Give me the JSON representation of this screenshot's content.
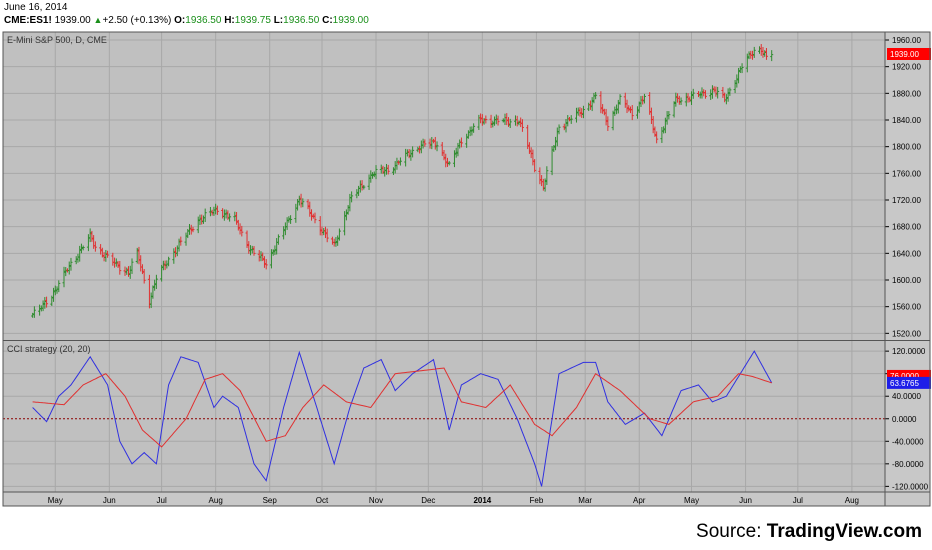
{
  "header": {
    "date": "June 16, 2014",
    "symbol": "CME:ES1!",
    "last": "1939.00",
    "change": "+2.50 (+0.13%)",
    "open_label": "O:",
    "open": "1936.50",
    "high_label": "H:",
    "high": "1939.75",
    "low_label": "L:",
    "low": "1936.50",
    "close_label": "C:",
    "close": "1939.00"
  },
  "source": {
    "prefix": "Source: ",
    "name": "TradingView.com"
  },
  "colors": {
    "background": "#c0c0c0",
    "up_bar": "#2e8b2e",
    "down_bar": "#e03030",
    "cci_line": "#3030e0",
    "cci_ma_line": "#e03030",
    "zero_line": "#8b0000",
    "price_label": "#ff0000",
    "cci_label": "#1e1ee8"
  },
  "chart_data": [
    {
      "type": "bar",
      "subtype": "ohlc",
      "title": "E-Mini S&P 500, D, CME",
      "y_ticks": [
        "1960.00",
        "1920.00",
        "1880.00",
        "1840.00",
        "1800.00",
        "1760.00",
        "1720.00",
        "1680.00",
        "1640.00",
        "1600.00",
        "1560.00",
        "1520.00"
      ],
      "ylim": [
        1510,
        1972
      ],
      "x_ticks": [
        "May",
        "Jun",
        "Jul",
        "Aug",
        "Sep",
        "Oct",
        "Nov",
        "Dec",
        "2014",
        "Feb",
        "Mar",
        "Apr",
        "May",
        "Jun",
        "Jul",
        "Aug"
      ],
      "last_value_label": "1939.00",
      "grid": true,
      "anchors": [
        [
          "2013-04-18",
          1548
        ],
        [
          "2013-04-22",
          1555
        ],
        [
          "2013-05-01",
          1585
        ],
        [
          "2013-05-10",
          1625
        ],
        [
          "2013-05-21",
          1665
        ],
        [
          "2013-05-24",
          1650
        ],
        [
          "2013-06-05",
          1622
        ],
        [
          "2013-06-12",
          1612
        ],
        [
          "2013-06-17",
          1640
        ],
        [
          "2013-06-24",
          1570
        ],
        [
          "2013-06-28",
          1603
        ],
        [
          "2013-07-10",
          1650
        ],
        [
          "2013-07-22",
          1690
        ],
        [
          "2013-08-02",
          1706
        ],
        [
          "2013-08-12",
          1690
        ],
        [
          "2013-08-21",
          1645
        ],
        [
          "2013-08-30",
          1625
        ],
        [
          "2013-09-10",
          1680
        ],
        [
          "2013-09-18",
          1722
        ],
        [
          "2013-09-27",
          1690
        ],
        [
          "2013-10-08",
          1650
        ],
        [
          "2013-10-17",
          1720
        ],
        [
          "2013-10-30",
          1760
        ],
        [
          "2013-11-08",
          1765
        ],
        [
          "2013-11-18",
          1785
        ],
        [
          "2013-11-27",
          1803
        ],
        [
          "2013-12-06",
          1805
        ],
        [
          "2013-12-13",
          1770
        ],
        [
          "2013-12-20",
          1810
        ],
        [
          "2013-12-31",
          1840
        ],
        [
          "2014-01-15",
          1838
        ],
        [
          "2014-01-22",
          1840
        ],
        [
          "2014-01-31",
          1770
        ],
        [
          "2014-02-05",
          1740
        ],
        [
          "2014-02-14",
          1830
        ],
        [
          "2014-02-28",
          1855
        ],
        [
          "2014-03-07",
          1875
        ],
        [
          "2014-03-14",
          1835
        ],
        [
          "2014-03-21",
          1870
        ],
        [
          "2014-03-28",
          1850
        ],
        [
          "2014-04-04",
          1875
        ],
        [
          "2014-04-11",
          1810
        ],
        [
          "2014-04-22",
          1870
        ],
        [
          "2014-05-02",
          1875
        ],
        [
          "2014-05-14",
          1885
        ],
        [
          "2014-05-20",
          1870
        ],
        [
          "2014-05-30",
          1920
        ],
        [
          "2014-06-06",
          1945
        ],
        [
          "2014-06-10",
          1947
        ],
        [
          "2014-06-13",
          1932
        ],
        [
          "2014-06-16",
          1939
        ]
      ]
    },
    {
      "type": "line",
      "title": "CCI strategy (20, 20)",
      "y_ticks": [
        "120.0000",
        "80.0000",
        "40.0000",
        "0.0000",
        "-40.0000",
        "-80.0000",
        "-120.0000"
      ],
      "ylim": [
        -130,
        138
      ],
      "zero_line": 0,
      "last_value_label": "63.6765",
      "hidden_value_label": "76.0000",
      "series": [
        {
          "role": "cci",
          "anchors": [
            [
              "2013-04-18",
              20
            ],
            [
              "2013-04-26",
              -5
            ],
            [
              "2013-05-03",
              40
            ],
            [
              "2013-05-10",
              60
            ],
            [
              "2013-05-21",
              110
            ],
            [
              "2013-05-31",
              60
            ],
            [
              "2013-06-07",
              -40
            ],
            [
              "2013-06-14",
              -80
            ],
            [
              "2013-06-21",
              -60
            ],
            [
              "2013-06-28",
              -80
            ],
            [
              "2013-07-05",
              60
            ],
            [
              "2013-07-12",
              110
            ],
            [
              "2013-07-22",
              100
            ],
            [
              "2013-07-31",
              20
            ],
            [
              "2013-08-05",
              40
            ],
            [
              "2013-08-14",
              20
            ],
            [
              "2013-08-23",
              -80
            ],
            [
              "2013-08-30",
              -110
            ],
            [
              "2013-09-09",
              20
            ],
            [
              "2013-09-18",
              118
            ],
            [
              "2013-09-27",
              30
            ],
            [
              "2013-10-08",
              -80
            ],
            [
              "2013-10-17",
              20
            ],
            [
              "2013-10-25",
              90
            ],
            [
              "2013-11-04",
              105
            ],
            [
              "2013-11-12",
              50
            ],
            [
              "2013-11-22",
              80
            ],
            [
              "2013-12-04",
              105
            ],
            [
              "2013-12-13",
              -20
            ],
            [
              "2013-12-20",
              60
            ],
            [
              "2013-12-31",
              80
            ],
            [
              "2014-01-10",
              70
            ],
            [
              "2014-01-21",
              0
            ],
            [
              "2014-01-31",
              -80
            ],
            [
              "2014-02-04",
              -120
            ],
            [
              "2014-02-14",
              80
            ],
            [
              "2014-02-28",
              100
            ],
            [
              "2014-03-07",
              100
            ],
            [
              "2014-03-14",
              30
            ],
            [
              "2014-03-24",
              -10
            ],
            [
              "2014-04-04",
              10
            ],
            [
              "2014-04-14",
              -30
            ],
            [
              "2014-04-25",
              50
            ],
            [
              "2014-05-05",
              60
            ],
            [
              "2014-05-13",
              30
            ],
            [
              "2014-05-21",
              40
            ],
            [
              "2014-06-02",
              100
            ],
            [
              "2014-06-06",
              120
            ],
            [
              "2014-06-16",
              63.68
            ]
          ]
        },
        {
          "role": "cci_ma",
          "anchors": [
            [
              "2013-04-18",
              30
            ],
            [
              "2013-05-06",
              25
            ],
            [
              "2013-05-17",
              60
            ],
            [
              "2013-05-30",
              80
            ],
            [
              "2013-06-10",
              40
            ],
            [
              "2013-06-20",
              -20
            ],
            [
              "2013-07-01",
              -50
            ],
            [
              "2013-07-15",
              0
            ],
            [
              "2013-07-26",
              70
            ],
            [
              "2013-08-05",
              80
            ],
            [
              "2013-08-15",
              50
            ],
            [
              "2013-08-30",
              -40
            ],
            [
              "2013-09-10",
              -30
            ],
            [
              "2013-09-20",
              20
            ],
            [
              "2013-10-02",
              60
            ],
            [
              "2013-10-15",
              30
            ],
            [
              "2013-10-29",
              20
            ],
            [
              "2013-11-12",
              80
            ],
            [
              "2013-11-26",
              85
            ],
            [
              "2013-12-10",
              90
            ],
            [
              "2013-12-20",
              30
            ],
            [
              "2014-01-03",
              20
            ],
            [
              "2014-01-17",
              60
            ],
            [
              "2014-01-31",
              -10
            ],
            [
              "2014-02-10",
              -30
            ],
            [
              "2014-02-24",
              20
            ],
            [
              "2014-03-07",
              80
            ],
            [
              "2014-03-21",
              50
            ],
            [
              "2014-04-07",
              0
            ],
            [
              "2014-04-18",
              -10
            ],
            [
              "2014-05-02",
              30
            ],
            [
              "2014-05-16",
              40
            ],
            [
              "2014-05-28",
              80
            ],
            [
              "2014-06-05",
              75
            ],
            [
              "2014-06-16",
              63.68
            ]
          ]
        }
      ]
    }
  ]
}
